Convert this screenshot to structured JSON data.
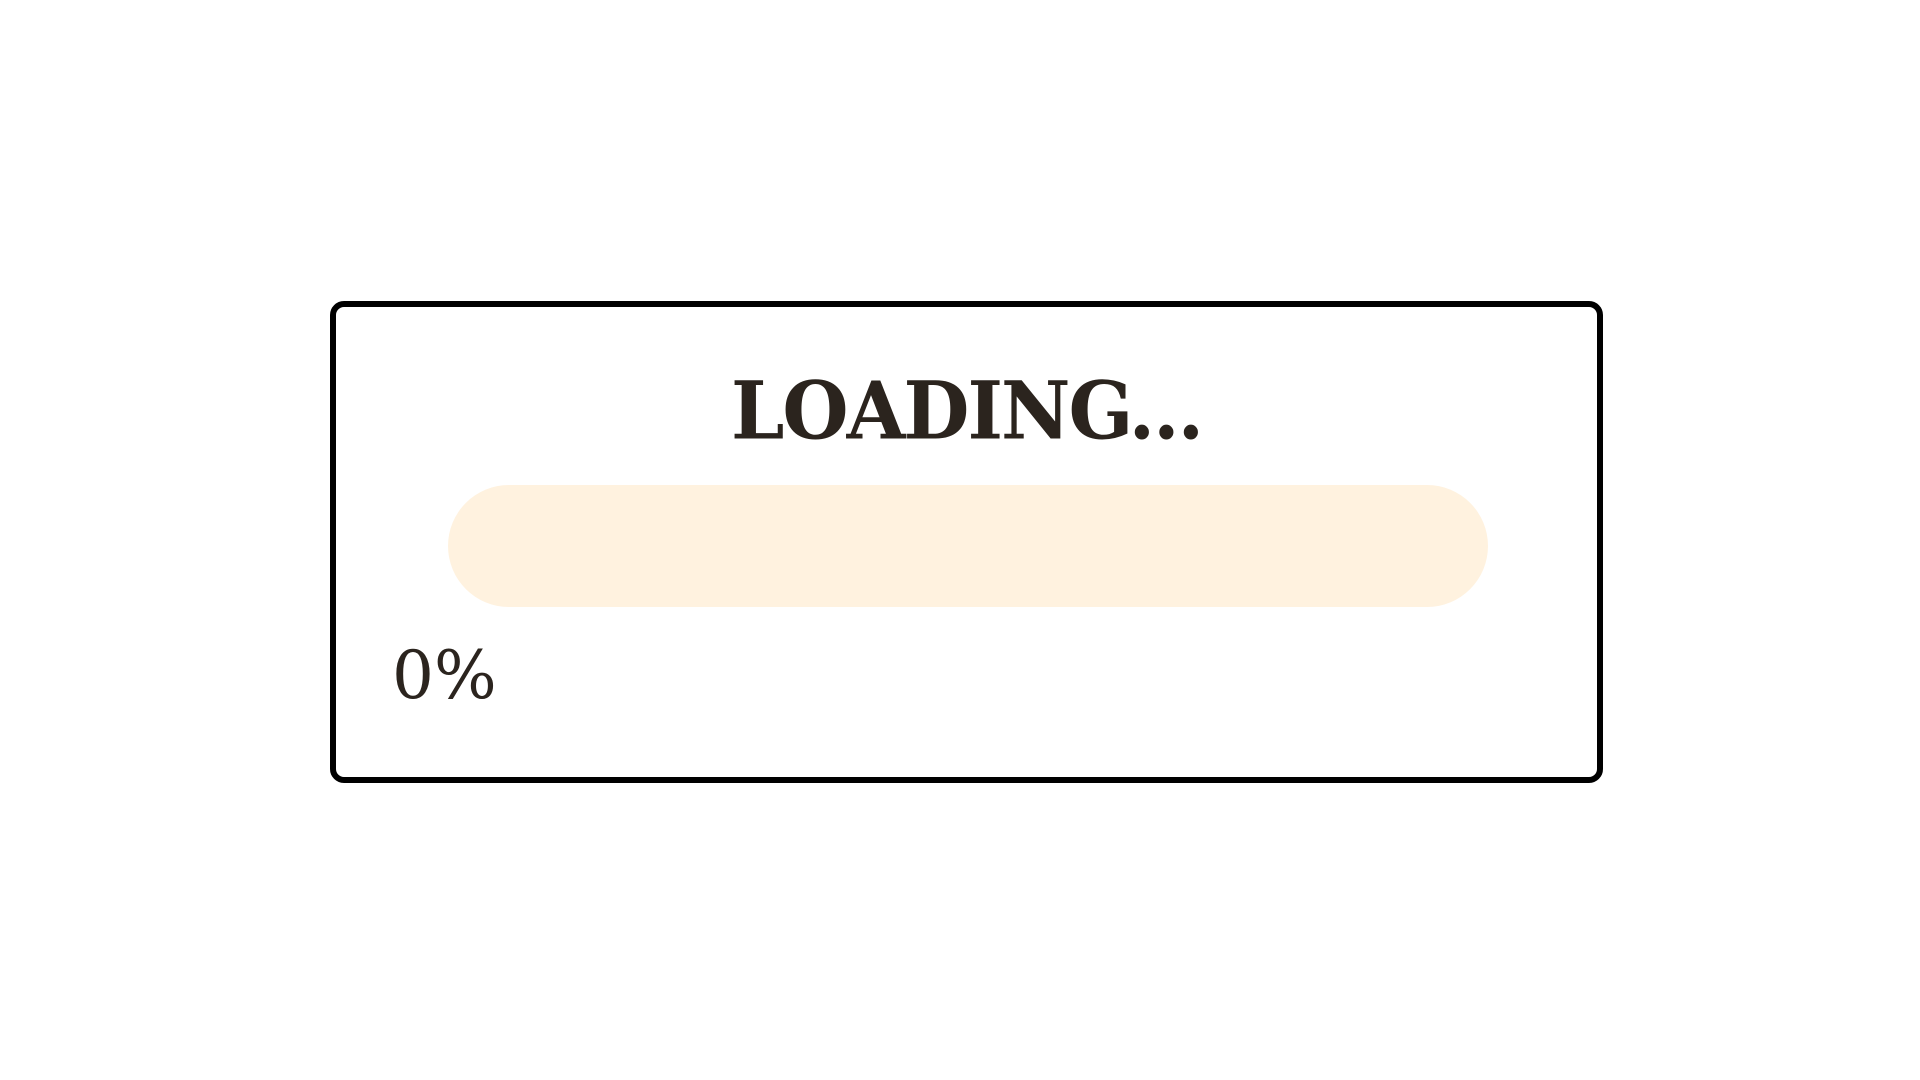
{
  "loading": {
    "title": "LOADING...",
    "percent_label": "0%",
    "progress": 0
  },
  "colors": {
    "border": "#000000",
    "text": "#2b241e",
    "track": "#fff2df",
    "fill": "#f5a623",
    "background": "#ffffff"
  }
}
